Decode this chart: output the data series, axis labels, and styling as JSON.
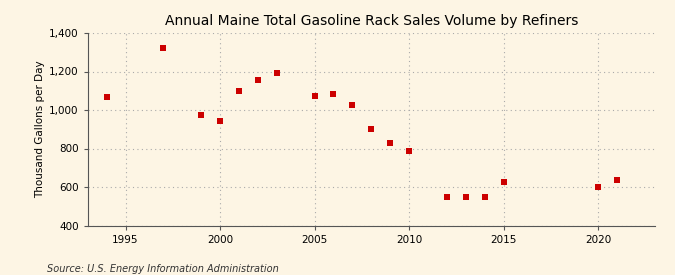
{
  "title": "Annual Maine Total Gasoline Rack Sales Volume by Refiners",
  "ylabel": "Thousand Gallons per Day",
  "source": "Source: U.S. Energy Information Administration",
  "background_color": "#fdf5e4",
  "marker_color": "#cc0000",
  "years": [
    1994,
    1997,
    1999,
    2000,
    2001,
    2002,
    2003,
    2005,
    2006,
    2007,
    2008,
    2009,
    2010,
    2012,
    2013,
    2014,
    2015,
    2020,
    2021
  ],
  "values": [
    1065,
    1320,
    975,
    945,
    1100,
    1155,
    1190,
    1075,
    1085,
    1025,
    900,
    830,
    785,
    550,
    550,
    550,
    625,
    600,
    638
  ],
  "xlim": [
    1993,
    2023
  ],
  "ylim": [
    400,
    1400
  ],
  "yticks": [
    400,
    600,
    800,
    1000,
    1200,
    1400
  ],
  "xticks": [
    1995,
    2000,
    2005,
    2010,
    2015,
    2020
  ],
  "marker_size": 18,
  "title_fontsize": 10,
  "label_fontsize": 7.5,
  "tick_fontsize": 7.5,
  "source_fontsize": 7
}
